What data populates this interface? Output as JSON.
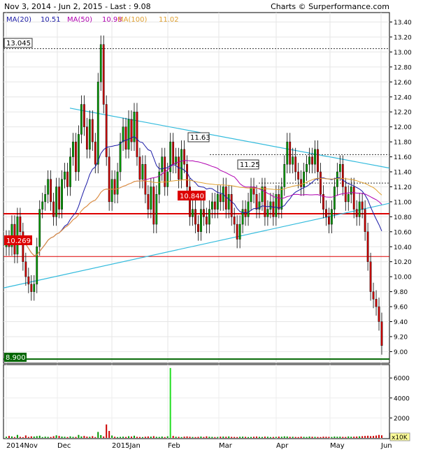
{
  "header": {
    "title": "Nov 3, 2014 - Jun 2, 2015 - Last : 9.08",
    "credit": "Charts © Surperformance.com"
  },
  "legend": [
    {
      "label": "MA(20)",
      "value": "10.51",
      "color": "#1a1aa6"
    },
    {
      "label": "MA(50)",
      "value": "10.98",
      "color": "#b000b0"
    },
    {
      "label": "MA(100)",
      "value": "11.02",
      "color": "#e0a030"
    }
  ],
  "level_labels": {
    "l13045": "13.045",
    "l1163": "11.63",
    "l1125": "11.25",
    "l10840": "10.840",
    "l10269": "10.269",
    "l8900": "8.900"
  },
  "volume_unit": "x10K",
  "colors": {
    "up": "#009900",
    "down": "#cc0000",
    "trendline": "#33bbdd",
    "support": "#dd0000",
    "floor": "#006600",
    "volume_spike": "#22dd22"
  },
  "chart_data": {
    "type": "candlestick",
    "title": "Nov 3, 2014 - Jun 2, 2015 - Last : 9.08",
    "y_ticks": [
      "13.40",
      "13.20",
      "13.00",
      "12.80",
      "12.60",
      "12.40",
      "12.20",
      "12.00",
      "11.80",
      "11.60",
      "11.40",
      "11.20",
      "11.00",
      "10.80",
      "10.60",
      "10.40",
      "10.20",
      "10.00",
      "9.80",
      "9.60",
      "9.40",
      "9.20",
      "9.00"
    ],
    "ylim": [
      8.9,
      13.45
    ],
    "x_labels": [
      "2014Nov",
      "Dec",
      "2015Jan",
      "Feb",
      "Mar",
      "Apr",
      "May",
      "Jun"
    ],
    "volume_ticks": [
      "6000",
      "4000",
      "2000"
    ],
    "volume_ylim": [
      0,
      7200
    ],
    "levels": [
      13.045,
      11.63,
      11.25,
      10.84,
      10.269,
      8.9
    ],
    "closes": [
      10.5,
      10.4,
      10.7,
      10.3,
      10.8,
      10.6,
      10.2,
      10.0,
      9.9,
      9.8,
      9.9,
      10.4,
      10.9,
      11.0,
      11.1,
      11.3,
      11.0,
      10.8,
      11.2,
      10.9,
      11.3,
      11.4,
      11.2,
      11.6,
      11.8,
      11.4,
      11.9,
      12.3,
      12.0,
      11.7,
      12.1,
      11.8,
      11.5,
      12.6,
      13.1,
      12.3,
      11.6,
      11.0,
      11.3,
      11.1,
      11.4,
      11.8,
      12.0,
      11.7,
      12.1,
      11.8,
      12.2,
      11.6,
      11.3,
      11.5,
      11.1,
      10.9,
      11.2,
      10.7,
      11.1,
      11.4,
      11.6,
      11.2,
      11.4,
      11.8,
      11.5,
      11.6,
      11.3,
      11.7,
      11.5,
      11.2,
      10.8,
      10.9,
      10.7,
      10.6,
      10.9,
      10.8,
      10.7,
      10.9,
      11.0,
      10.9,
      11.1,
      11.0,
      11.2,
      10.9,
      11.1,
      10.8,
      10.7,
      10.5,
      10.7,
      10.9,
      10.8,
      11.0,
      11.2,
      11.1,
      10.9,
      11.0,
      11.2,
      10.8,
      10.9,
      11.0,
      10.8,
      11.1,
      10.9,
      11.2,
      11.5,
      11.8,
      11.5,
      11.6,
      11.4,
      11.3,
      11.2,
      11.4,
      11.5,
      11.6,
      11.5,
      11.7,
      11.4,
      11.1,
      10.9,
      10.8,
      10.7,
      10.9,
      11.2,
      11.4,
      11.5,
      11.2,
      11.0,
      11.1,
      11.2,
      10.9,
      10.8,
      11.0,
      10.9,
      10.6,
      10.2,
      9.8,
      9.7,
      9.6,
      9.4,
      9.08
    ],
    "volumes": [
      120,
      200,
      150,
      90,
      300,
      110,
      80,
      250,
      100,
      160,
      140,
      180,
      220,
      90,
      130,
      110,
      95,
      170,
      260,
      200,
      140,
      120,
      90,
      160,
      110,
      100,
      300,
      150,
      200,
      130,
      120,
      180,
      90,
      600,
      280,
      150,
      1350,
      700,
      240,
      120,
      90,
      110,
      130,
      100,
      170,
      140,
      220,
      110,
      100,
      90,
      120,
      150,
      130,
      180,
      110,
      100,
      140,
      90,
      160,
      7000,
      200,
      120,
      110,
      90,
      130,
      150,
      120,
      100,
      90,
      110,
      140,
      100,
      160,
      120,
      110,
      90,
      100,
      130,
      140,
      120,
      150,
      110,
      100,
      90,
      120,
      130,
      110,
      90,
      100,
      120,
      140,
      110,
      100,
      130,
      120,
      90,
      100,
      110,
      130,
      120,
      160,
      140,
      110,
      120,
      100,
      90,
      130,
      110,
      100,
      140,
      120,
      110,
      100,
      90,
      130,
      120,
      110,
      100,
      140,
      120,
      130,
      110,
      100,
      150,
      120,
      130,
      140,
      160,
      180,
      200,
      220,
      180,
      200,
      240,
      300,
      260
    ]
  }
}
